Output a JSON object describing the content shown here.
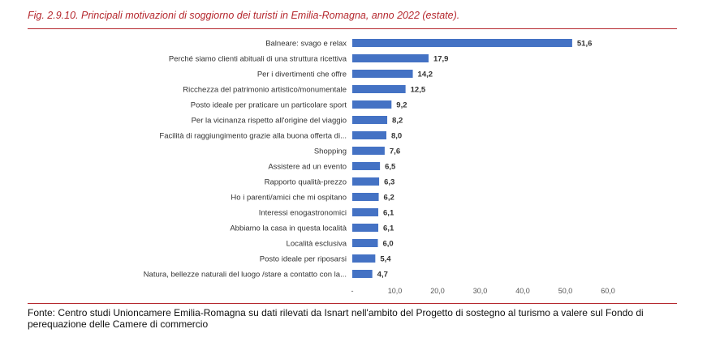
{
  "figure": {
    "title": "Fig. 2.9.10.  Principali motivazioni di soggiorno dei turisti in Emilia-Romagna, anno 2022 (estate).",
    "source": "Fonte: Centro studi Unioncamere Emilia-Romagna su dati rilevati da Isnart nell'ambito del Progetto di sostegno al turismo a valere sul Fondo di perequazione delle Camere di commercio"
  },
  "chart_data": {
    "type": "bar",
    "orientation": "horizontal",
    "title": "",
    "xlabel": "",
    "ylabel": "",
    "categories": [
      "Balneare: svago e relax",
      "Perché siamo clienti abituali di una struttura ricettiva",
      "Per i divertimenti che offre",
      "Ricchezza del patrimonio artistico/monumentale",
      "Posto ideale per praticare un particolare sport",
      "Per la vicinanza rispetto all'origine del viaggio",
      "Facilità di raggiungimento grazie alla buona offerta di...",
      "Shopping",
      "Assistere ad un evento",
      "Rapporto qualità-prezzo",
      "Ho i parenti/amici che mi ospitano",
      "Interessi enogastronomici",
      "Abbiamo la casa in questa località",
      "Località esclusiva",
      "Posto ideale per riposarsi",
      "Natura, bellezze naturali del luogo /stare a contatto con la..."
    ],
    "values": [
      51.6,
      17.9,
      14.2,
      12.5,
      9.2,
      8.2,
      8.0,
      7.6,
      6.5,
      6.3,
      6.2,
      6.1,
      6.1,
      6.0,
      5.4,
      4.7
    ],
    "value_labels": [
      "51,6",
      "17,9",
      "14,2",
      "12,5",
      "9,2",
      "8,2",
      "8,0",
      "7,6",
      "6,5",
      "6,3",
      "6,2",
      "6,1",
      "6,1",
      "6,0",
      "5,4",
      "4,7"
    ],
    "xlim": [
      0,
      60
    ],
    "ticks": [
      0,
      10,
      20,
      30,
      40,
      50,
      60
    ],
    "tick_labels": [
      "-",
      "10,0",
      "20,0",
      "30,0",
      "40,0",
      "50,0",
      "60,0"
    ],
    "bar_color": "#4472c4",
    "grid": false,
    "legend": "none"
  }
}
